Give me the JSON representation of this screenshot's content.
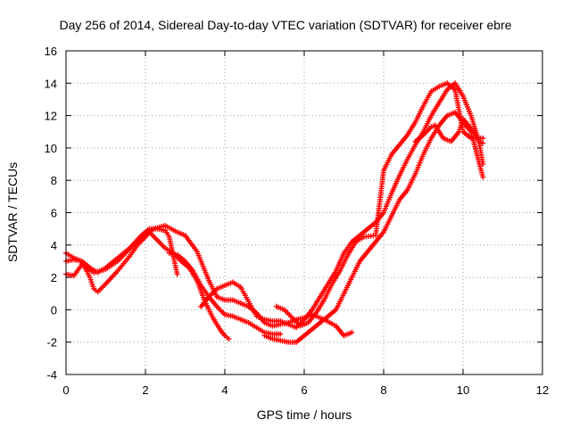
{
  "chart_data": {
    "type": "scatter",
    "title": "Day 256 of 2014, Sidereal Day-to-day VTEC variation (SDTVAR) for receiver ebre",
    "xlabel": "GPS time / hours",
    "ylabel": "SDTVAR / TECUs",
    "xlim": [
      0,
      12
    ],
    "ylim": [
      -4,
      16
    ],
    "xticks": [
      0,
      2,
      4,
      6,
      8,
      10,
      12
    ],
    "yticks": [
      -4,
      -2,
      0,
      2,
      4,
      6,
      8,
      10,
      12,
      14,
      16
    ],
    "grid": true,
    "marker": "+",
    "color": "#ff0000",
    "series": [
      {
        "x": [
          0.0,
          0.2,
          0.4,
          0.6,
          0.8,
          1.0,
          1.3,
          1.6,
          1.9,
          2.1,
          2.3,
          2.5,
          2.6,
          2.8
        ],
        "y": [
          3.5,
          3.2,
          3.0,
          2.6,
          2.3,
          2.6,
          3.2,
          3.8,
          4.6,
          5.0,
          5.0,
          4.9,
          4.5,
          2.2
        ]
      },
      {
        "x": [
          0.0,
          0.2,
          0.4,
          0.6,
          0.7,
          0.8,
          1.0,
          1.3,
          1.6,
          1.8,
          2.0,
          2.1,
          2.3,
          2.5,
          2.7,
          2.9,
          3.1,
          3.3,
          3.5,
          3.7,
          3.9,
          4.0,
          4.1
        ],
        "y": [
          3.0,
          3.1,
          3.0,
          2.0,
          1.3,
          1.1,
          1.6,
          2.4,
          3.3,
          4.0,
          4.5,
          4.8,
          4.3,
          3.8,
          3.5,
          3.0,
          2.6,
          1.8,
          0.5,
          -0.5,
          -1.3,
          -1.6,
          -1.8
        ]
      },
      {
        "x": [
          0.0,
          0.2,
          0.4,
          0.7,
          1.0,
          1.3,
          1.7,
          2.0,
          2.2,
          2.5,
          2.8,
          3.0,
          3.3,
          3.6,
          3.8,
          4.0,
          4.2,
          4.4,
          4.6,
          4.8,
          5.0,
          5.2,
          5.4,
          5.6,
          5.8,
          6.0,
          6.2,
          6.5,
          6.8,
          7.0,
          7.2
        ],
        "y": [
          2.2,
          2.1,
          2.8,
          2.3,
          2.5,
          3.0,
          4.0,
          4.6,
          5.0,
          5.2,
          4.8,
          4.6,
          3.6,
          1.8,
          0.8,
          0.6,
          0.6,
          0.4,
          0.2,
          -0.2,
          -0.8,
          -1.0,
          -0.9,
          -0.8,
          -0.6,
          -0.5,
          -0.3,
          -0.6,
          -1.0,
          -1.6,
          -1.4
        ]
      },
      {
        "x": [
          2.6,
          2.8,
          3.0,
          3.2,
          3.4,
          3.6,
          3.8,
          4.0,
          4.2,
          4.4,
          4.6,
          4.8,
          5.0,
          5.2,
          5.4
        ],
        "y": [
          3.5,
          3.4,
          3.0,
          2.4,
          1.5,
          0.8,
          0.2,
          -0.3,
          -0.4,
          -0.6,
          -0.8,
          -1.1,
          -1.4,
          -1.5,
          -1.5
        ]
      },
      {
        "x": [
          3.4,
          3.6,
          3.8,
          4.0,
          4.2,
          4.4,
          4.6,
          4.8,
          5.0,
          5.2,
          5.4,
          5.6,
          5.8,
          6.0,
          6.2,
          6.4,
          6.6,
          6.8,
          7.0,
          7.2,
          7.4,
          7.6,
          7.8,
          8.0,
          8.2,
          8.4,
          8.6,
          8.8,
          9.0,
          9.2,
          9.4,
          9.6,
          9.8,
          10.0,
          10.2,
          10.4,
          10.5
        ],
        "y": [
          0.2,
          0.8,
          1.3,
          1.5,
          1.7,
          1.4,
          0.5,
          -0.4,
          -0.6,
          -0.7,
          -0.7,
          -0.9,
          -1.1,
          -0.6,
          0.0,
          0.8,
          1.6,
          2.4,
          3.5,
          4.2,
          4.6,
          5.0,
          5.4,
          6.0,
          7.2,
          8.3,
          9.3,
          10.2,
          11.0,
          12.0,
          12.8,
          13.6,
          14.0,
          13.2,
          12.0,
          10.4,
          9.0
        ]
      },
      {
        "x": [
          5.0,
          5.2,
          5.4,
          5.6,
          5.8,
          6.0,
          6.2,
          6.4,
          6.6,
          6.8,
          7.0,
          7.2,
          7.4,
          7.6,
          7.8,
          8.0,
          8.2,
          8.4,
          8.6,
          8.8,
          9.0,
          9.2,
          9.4,
          9.6,
          9.8,
          10.0,
          10.2,
          10.5
        ],
        "y": [
          -1.6,
          -1.8,
          -1.9,
          -2.0,
          -2.0,
          -1.6,
          -1.2,
          -0.8,
          -0.4,
          0.0,
          1.0,
          2.0,
          3.0,
          3.6,
          4.2,
          4.8,
          5.8,
          6.8,
          7.4,
          8.4,
          9.6,
          10.6,
          11.4,
          12.0,
          12.2,
          11.6,
          11.0,
          8.2
        ]
      },
      {
        "x": [
          5.3,
          5.5,
          5.7,
          5.9,
          6.1,
          6.3,
          6.5,
          6.7,
          6.9,
          7.1,
          7.3,
          7.5,
          7.8,
          8.0,
          8.2,
          8.4,
          8.6,
          8.8,
          9.0,
          9.2,
          9.4,
          9.6,
          9.8,
          10.0,
          10.2,
          10.5
        ],
        "y": [
          0.2,
          0.0,
          -0.5,
          -1.0,
          -0.8,
          -0.2,
          0.6,
          1.6,
          2.4,
          3.4,
          4.2,
          4.5,
          4.6,
          8.6,
          9.6,
          10.2,
          10.8,
          11.6,
          12.6,
          13.5,
          13.8,
          14.0,
          13.6,
          11.0,
          10.6,
          10.6
        ]
      },
      {
        "x": [
          8.8,
          9.0,
          9.2,
          9.3,
          9.5,
          9.7,
          9.9,
          10.0,
          10.2,
          10.4,
          10.5
        ],
        "y": [
          10.4,
          10.8,
          11.3,
          11.4,
          10.6,
          10.4,
          11.0,
          11.8,
          11.2,
          10.4,
          10.3
        ]
      }
    ]
  }
}
